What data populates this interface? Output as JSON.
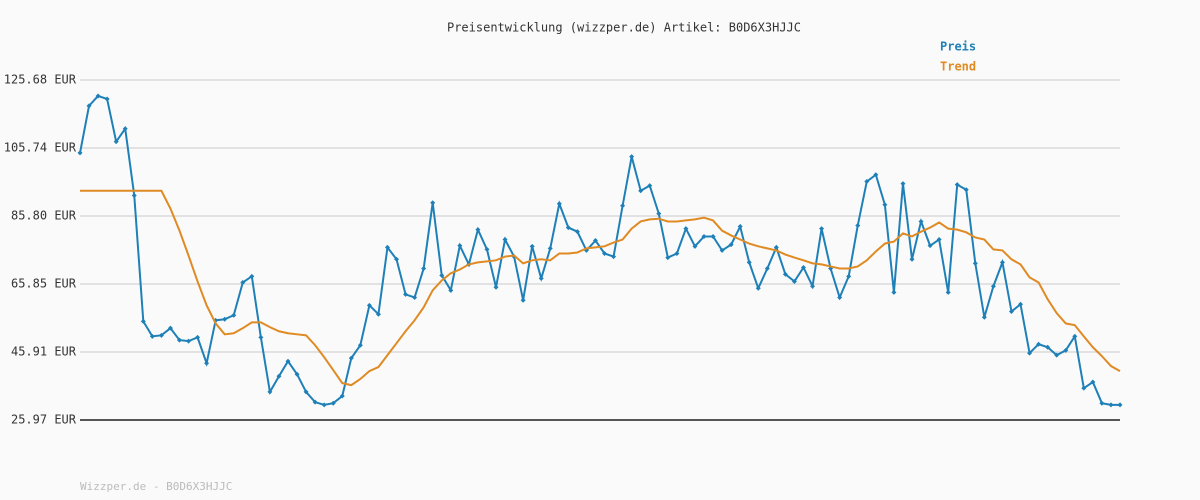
{
  "chart_data": {
    "type": "line",
    "title": "Preisentwicklung (wizzper.de) Artikel: B0D6X3HJJC",
    "footer": "Wizzper.de - B0D6X3HJJC",
    "legend": "top-right",
    "grid": true,
    "categories": [
      null,
      null,
      null,
      null,
      null,
      null,
      null,
      null,
      null,
      null,
      null,
      null,
      null,
      null,
      null,
      null,
      null,
      null,
      null,
      null,
      null,
      null,
      null,
      null,
      null,
      null,
      null,
      null,
      null,
      null,
      null,
      null,
      null,
      null,
      null,
      null,
      null,
      null,
      null,
      null,
      null,
      null,
      null,
      null,
      null,
      null,
      null,
      null,
      null,
      null,
      null,
      null,
      null,
      null,
      null,
      null,
      null,
      null,
      null,
      null,
      null,
      null,
      null,
      null,
      null,
      null,
      null,
      null,
      null,
      null,
      null,
      null,
      null,
      null,
      null,
      null,
      null,
      null,
      null,
      null,
      null,
      null,
      null,
      null,
      null,
      null,
      null,
      null,
      null,
      null,
      null,
      null,
      null,
      null,
      null,
      null,
      null,
      null,
      null,
      null,
      null,
      null,
      null,
      null,
      null,
      null,
      null,
      null,
      null,
      null,
      null,
      null,
      null,
      null,
      null,
      null
    ],
    "ylim": [
      25.97,
      125.68
    ],
    "yticks": [
      {
        "value": 25.97,
        "label": "25.97 EUR"
      },
      {
        "value": 45.91,
        "label": "45.91 EUR"
      },
      {
        "value": 65.85,
        "label": "65.85 EUR"
      },
      {
        "value": 85.8,
        "label": "85.80 EUR"
      },
      {
        "value": 105.74,
        "label": "105.74 EUR"
      },
      {
        "value": 125.68,
        "label": "125.68 EUR"
      }
    ],
    "series": [
      {
        "name": "Preis",
        "color": "#1f80b8",
        "markers": true,
        "values": [
          104.3,
          118.1,
          121.0,
          120.1,
          107.6,
          111.4,
          91.8,
          54.9,
          50.5,
          50.8,
          52.9,
          49.4,
          49.1,
          50.2,
          42.6,
          55.2,
          55.5,
          56.7,
          66.3,
          68.1,
          50.2,
          34.2,
          38.8,
          43.2,
          39.4,
          34.2,
          31.2,
          30.4,
          30.9,
          33.0,
          44.1,
          47.9,
          59.6,
          57.0,
          76.6,
          73.1,
          62.8,
          61.9,
          70.4,
          89.7,
          68.4,
          64.0,
          77.1,
          71.6,
          81.8,
          76.0,
          64.9,
          78.9,
          73.9,
          61.1,
          76.9,
          67.5,
          76.3,
          89.4,
          82.4,
          81.2,
          75.7,
          78.6,
          74.8,
          73.9,
          88.8,
          103.2,
          93.2,
          94.7,
          86.5,
          73.6,
          74.8,
          82.1,
          76.9,
          79.8,
          79.8,
          75.7,
          77.4,
          82.7,
          72.2,
          64.6,
          70.4,
          76.6,
          68.7,
          66.6,
          70.7,
          65.2,
          82.1,
          70.4,
          61.9,
          68.1,
          83.0,
          95.9,
          97.9,
          89.1,
          63.4,
          95.3,
          73.1,
          84.2,
          77.1,
          78.9,
          63.4,
          95.0,
          93.5,
          71.9,
          56.1,
          65.2,
          72.2,
          57.8,
          59.9,
          45.6,
          48.2,
          47.3,
          45.0,
          46.4,
          50.5,
          35.3,
          37.1,
          30.9,
          30.4,
          30.4
        ]
      },
      {
        "name": "Trend",
        "color": "#e08a24",
        "markers": false,
        "values": [
          93.2,
          93.2,
          93.2,
          93.2,
          93.2,
          93.2,
          93.2,
          93.2,
          93.2,
          93.2,
          88.0,
          81.5,
          74.2,
          66.6,
          59.6,
          54.3,
          51.1,
          51.4,
          52.9,
          54.6,
          54.6,
          53.2,
          52.0,
          51.4,
          51.1,
          50.8,
          47.9,
          44.4,
          40.6,
          36.8,
          36.2,
          38.0,
          40.3,
          41.5,
          45.0,
          48.5,
          52.0,
          55.2,
          59.0,
          64.0,
          66.9,
          69.0,
          70.1,
          71.6,
          72.2,
          72.5,
          72.8,
          73.9,
          74.2,
          71.9,
          72.8,
          73.1,
          72.8,
          74.8,
          74.8,
          75.1,
          76.3,
          76.6,
          76.9,
          78.0,
          78.9,
          82.1,
          84.2,
          84.8,
          85.0,
          84.2,
          84.2,
          84.5,
          84.8,
          85.3,
          84.5,
          81.5,
          80.1,
          78.9,
          77.7,
          76.9,
          76.3,
          75.7,
          74.5,
          73.6,
          72.8,
          71.9,
          71.6,
          71.0,
          70.4,
          70.4,
          71.0,
          72.8,
          75.4,
          77.7,
          78.3,
          80.7,
          79.8,
          81.2,
          82.4,
          83.9,
          82.1,
          81.8,
          81.0,
          79.5,
          78.9,
          76.0,
          75.7,
          73.1,
          71.6,
          67.8,
          66.3,
          61.4,
          57.3,
          54.3,
          53.8,
          50.5,
          47.3,
          44.7,
          41.8,
          40.3
        ]
      }
    ]
  }
}
